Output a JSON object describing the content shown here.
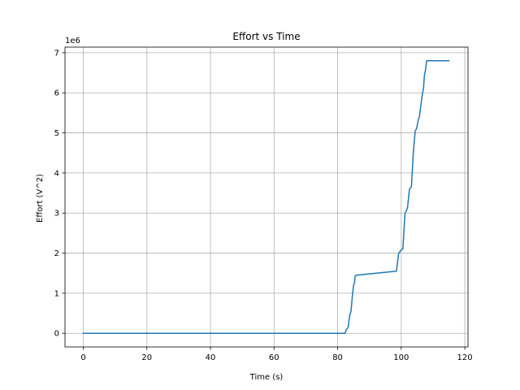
{
  "chart_data": {
    "type": "line",
    "title": "Effort vs Time",
    "xlabel": "Time (s)",
    "ylabel": "Effort (V^2)",
    "y_offset_label": "1e6",
    "xlim": [
      -5.75,
      121
    ],
    "ylim": [
      -340000,
      7140000
    ],
    "xticks": [
      0,
      20,
      40,
      60,
      80,
      100,
      120
    ],
    "yticks": [
      0,
      1000000,
      2000000,
      3000000,
      4000000,
      5000000,
      6000000,
      7000000
    ],
    "ytick_labels": [
      "0",
      "1",
      "2",
      "3",
      "4",
      "5",
      "6",
      "7"
    ],
    "grid": true,
    "series": [
      {
        "color": "#1f77b4",
        "points": [
          [
            0,
            0
          ],
          [
            82.3,
            0
          ],
          [
            82.8,
            100000
          ],
          [
            83.3,
            150000
          ],
          [
            83.8,
            450000
          ],
          [
            84.2,
            550000
          ],
          [
            84.6,
            900000
          ],
          [
            85.0,
            1200000
          ],
          [
            85.3,
            1250000
          ],
          [
            85.5,
            1430000
          ],
          [
            85.8,
            1450000
          ],
          [
            98.5,
            1550000
          ],
          [
            99.2,
            2000000
          ],
          [
            100.0,
            2080000
          ],
          [
            100.5,
            2100000
          ],
          [
            101.2,
            3000000
          ],
          [
            101.6,
            3050000
          ],
          [
            102.0,
            3150000
          ],
          [
            102.6,
            3600000
          ],
          [
            103.2,
            3650000
          ],
          [
            103.8,
            4500000
          ],
          [
            104.4,
            5050000
          ],
          [
            104.8,
            5100000
          ],
          [
            105.3,
            5300000
          ],
          [
            105.7,
            5400000
          ],
          [
            106.2,
            5700000
          ],
          [
            106.7,
            6000000
          ],
          [
            107.0,
            6100000
          ],
          [
            107.3,
            6450000
          ],
          [
            107.6,
            6550000
          ],
          [
            108.0,
            6800000
          ],
          [
            115.0,
            6800000
          ]
        ]
      }
    ]
  }
}
